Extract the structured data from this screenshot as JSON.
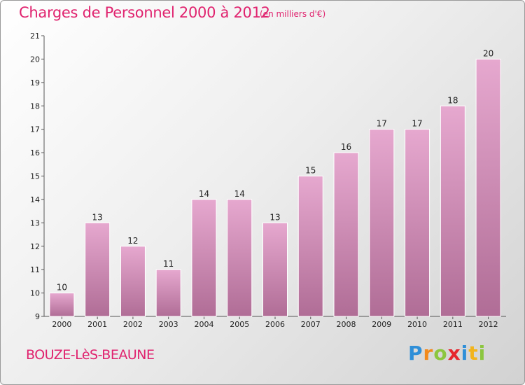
{
  "header": {
    "title": "Charges de Personnel 2000 à 2012",
    "unit": "(en milliers d'€)"
  },
  "footer": {
    "city": "BOUZE-LèS-BEAUNE",
    "logo": "Proxiti"
  },
  "colors": {
    "title": "#e0226e",
    "bar_top": "#e6a8cf",
    "bar_bottom": "#b06d96"
  },
  "chart_data": {
    "type": "bar",
    "title": "Charges de Personnel 2000 à 2012",
    "ylabel": "",
    "xlabel": "",
    "categories": [
      "2000",
      "2001",
      "2002",
      "2003",
      "2004",
      "2005",
      "2006",
      "2007",
      "2008",
      "2009",
      "2010",
      "2011",
      "2012"
    ],
    "values": [
      10,
      13,
      12,
      11,
      14,
      14,
      13,
      15,
      16,
      17,
      17,
      18,
      20
    ],
    "ylim": [
      9,
      21
    ],
    "yticks": [
      9,
      10,
      11,
      12,
      13,
      14,
      15,
      16,
      17,
      18,
      19,
      20,
      21
    ],
    "grid": false,
    "data_labels": true
  }
}
